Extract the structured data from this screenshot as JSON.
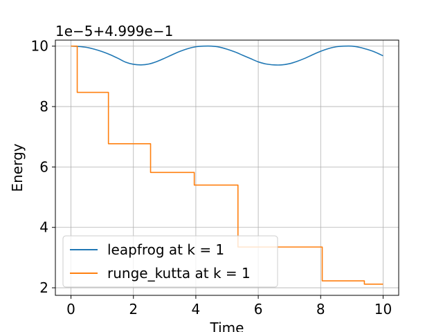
{
  "chart_data": {
    "type": "line",
    "title": "",
    "xlabel": "Time",
    "ylabel": "Energy",
    "offset_text": "1e−5+4.999e−1",
    "xlim": [
      -0.5,
      10.5
    ],
    "ylim": [
      1.75,
      10.2
    ],
    "x_ticks": [
      0,
      2,
      4,
      6,
      8,
      10
    ],
    "y_ticks": [
      2,
      4,
      6,
      8,
      10
    ],
    "x_tick_labels": [
      "0",
      "2",
      "4",
      "6",
      "8",
      "10"
    ],
    "y_tick_labels": [
      "2",
      "4",
      "6",
      "8",
      "10"
    ],
    "grid": true,
    "legend_position": "lower-left",
    "series": [
      {
        "name": "leapfrog at k = 1",
        "color": "#1f77b4",
        "style": "smooth",
        "x": [
          0,
          0.25,
          0.5,
          0.75,
          1.0,
          1.25,
          1.5,
          1.75,
          2.0,
          2.25,
          2.5,
          2.75,
          3.0,
          3.25,
          3.5,
          3.75,
          4.0,
          4.25,
          4.5,
          4.75,
          5.0,
          5.25,
          5.5,
          5.75,
          6.0,
          6.25,
          6.5,
          6.75,
          7.0,
          7.25,
          7.5,
          7.75,
          8.0,
          8.25,
          8.5,
          8.75,
          9.0,
          9.25,
          9.5,
          9.75,
          10.0
        ],
        "y": [
          10.0,
          9.99,
          9.96,
          9.9,
          9.82,
          9.72,
          9.6,
          9.47,
          9.4,
          9.38,
          9.41,
          9.49,
          9.6,
          9.72,
          9.83,
          9.92,
          9.98,
          10.0,
          10.0,
          9.97,
          9.9,
          9.81,
          9.7,
          9.59,
          9.48,
          9.41,
          9.38,
          9.38,
          9.42,
          9.5,
          9.6,
          9.72,
          9.83,
          9.92,
          9.98,
          10.0,
          10.0,
          9.96,
          9.89,
          9.8,
          9.68
        ]
      },
      {
        "name": "runge_kutta at k = 1",
        "color": "#ff7f0e",
        "style": "step",
        "x": [
          0,
          0.2,
          0.2,
          1.2,
          1.2,
          2.55,
          2.55,
          3.95,
          3.95,
          5.35,
          5.35,
          6.7,
          6.7,
          8.05,
          8.05,
          9.4,
          9.4,
          10.0
        ],
        "y": [
          10.0,
          10.0,
          8.47,
          8.47,
          6.77,
          6.77,
          5.82,
          5.82,
          5.4,
          5.4,
          3.35,
          3.35,
          3.35,
          3.35,
          2.23,
          2.23,
          2.12,
          2.12
        ]
      }
    ]
  }
}
